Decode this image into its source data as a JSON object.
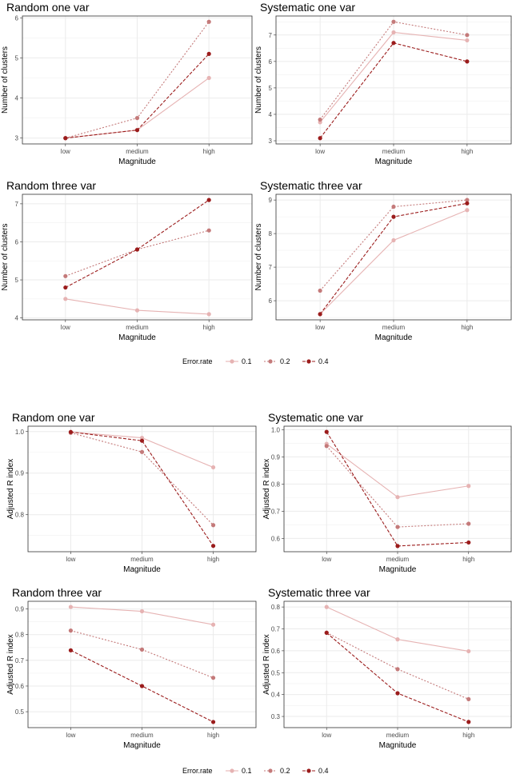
{
  "legend": {
    "title": "Error.rate",
    "entries": [
      {
        "label": "0.1",
        "color": "#e6b3b3",
        "linetype": "solid"
      },
      {
        "label": "0.2",
        "color": "#c47a7a",
        "linetype": "dotted"
      },
      {
        "label": "0.4",
        "color": "#9b1c1c",
        "linetype": "dashed"
      }
    ]
  },
  "chart_data": [
    {
      "type": "line",
      "title": "Random one var",
      "xlabel": "Magnitude",
      "ylabel": "Number of clusters",
      "categories": [
        "low",
        "medium",
        "high"
      ],
      "ylim": [
        2.855,
        6.045
      ],
      "yticks": [
        "3",
        "4",
        "5",
        "6"
      ],
      "grid": true,
      "series": [
        {
          "name": "0.1",
          "values": [
            3,
            3.2,
            4.5
          ]
        },
        {
          "name": "0.2",
          "values": [
            3,
            3.5,
            5.9
          ]
        },
        {
          "name": "0.4",
          "values": [
            3,
            3.2,
            5.1
          ]
        }
      ]
    },
    {
      "type": "line",
      "title": "Systematic one var",
      "xlabel": "Magnitude",
      "ylabel": "Number of clusters",
      "categories": [
        "low",
        "medium",
        "high"
      ],
      "ylim": [
        2.88,
        7.72
      ],
      "yticks": [
        "3",
        "4",
        "5",
        "6",
        "7"
      ],
      "grid": true,
      "series": [
        {
          "name": "0.1",
          "values": [
            3.7,
            7.1,
            6.8
          ]
        },
        {
          "name": "0.2",
          "values": [
            3.8,
            7.5,
            7.0
          ]
        },
        {
          "name": "0.4",
          "values": [
            3.1,
            6.7,
            6.0
          ]
        }
      ]
    },
    {
      "type": "line",
      "title": "Random three var",
      "xlabel": "Magnitude",
      "ylabel": "Number of clusters",
      "categories": [
        "low",
        "medium",
        "high"
      ],
      "ylim": [
        3.95,
        7.25
      ],
      "yticks": [
        "4",
        "5",
        "6",
        "7"
      ],
      "grid": true,
      "series": [
        {
          "name": "0.1",
          "values": [
            4.5,
            4.2,
            4.1
          ]
        },
        {
          "name": "0.2",
          "values": [
            5.1,
            5.8,
            6.3
          ]
        },
        {
          "name": "0.4",
          "values": [
            4.8,
            5.8,
            7.1
          ]
        }
      ]
    },
    {
      "type": "line",
      "title": "Systematic three var",
      "xlabel": "Magnitude",
      "ylabel": "Number of clusters",
      "categories": [
        "low",
        "medium",
        "high"
      ],
      "ylim": [
        5.43,
        9.17
      ],
      "yticks": [
        "6",
        "7",
        "8",
        "9"
      ],
      "grid": true,
      "series": [
        {
          "name": "0.1",
          "values": [
            5.6,
            7.8,
            8.7
          ]
        },
        {
          "name": "0.2",
          "values": [
            6.3,
            8.8,
            9.0
          ]
        },
        {
          "name": "0.4",
          "values": [
            5.6,
            8.5,
            8.9
          ]
        }
      ]
    },
    {
      "type": "line",
      "title": "Random one var",
      "xlabel": "Magnitude",
      "ylabel": "Adjusted R index",
      "categories": [
        "low",
        "medium",
        "high"
      ],
      "ylim": [
        0.711,
        1.013
      ],
      "yticks": [
        "0.8",
        "0.9",
        "1.0"
      ],
      "grid": true,
      "series": [
        {
          "name": "0.1",
          "values": [
            0.999,
            0.985,
            0.914
          ]
        },
        {
          "name": "0.2",
          "values": [
            0.997,
            0.951,
            0.775
          ]
        },
        {
          "name": "0.4",
          "values": [
            0.999,
            0.978,
            0.725
          ]
        }
      ]
    },
    {
      "type": "line",
      "title": "Systematic one var",
      "xlabel": "Magnitude",
      "ylabel": "Adjusted R index",
      "categories": [
        "low",
        "medium",
        "high"
      ],
      "ylim": [
        0.551,
        1.013
      ],
      "yticks": [
        "0.6",
        "0.7",
        "0.8",
        "0.9",
        "1.0"
      ],
      "grid": true,
      "series": [
        {
          "name": "0.1",
          "values": [
            0.948,
            0.752,
            0.793
          ]
        },
        {
          "name": "0.2",
          "values": [
            0.94,
            0.642,
            0.654
          ]
        },
        {
          "name": "0.4",
          "values": [
            0.992,
            0.572,
            0.585
          ]
        }
      ]
    },
    {
      "type": "line",
      "title": "Random three var",
      "xlabel": "Magnitude",
      "ylabel": "Adjusted R index",
      "categories": [
        "low",
        "medium",
        "high"
      ],
      "ylim": [
        0.438,
        0.93
      ],
      "yticks": [
        "0.5",
        "0.6",
        "0.7",
        "0.8",
        "0.9"
      ],
      "grid": true,
      "series": [
        {
          "name": "0.1",
          "values": [
            0.908,
            0.891,
            0.839
          ]
        },
        {
          "name": "0.2",
          "values": [
            0.816,
            0.742,
            0.632
          ]
        },
        {
          "name": "0.4",
          "values": [
            0.739,
            0.6,
            0.46
          ]
        }
      ]
    },
    {
      "type": "line",
      "title": "Systematic three var",
      "xlabel": "Magnitude",
      "ylabel": "Adjusted R index",
      "categories": [
        "low",
        "medium",
        "high"
      ],
      "ylim": [
        0.249,
        0.826
      ],
      "yticks": [
        "0.3",
        "0.4",
        "0.5",
        "0.6",
        "0.7",
        "0.8"
      ],
      "grid": true,
      "series": [
        {
          "name": "0.1",
          "values": [
            0.8,
            0.652,
            0.598
          ]
        },
        {
          "name": "0.2",
          "values": [
            0.683,
            0.516,
            0.379
          ]
        },
        {
          "name": "0.4",
          "values": [
            0.682,
            0.406,
            0.275
          ]
        }
      ]
    }
  ]
}
